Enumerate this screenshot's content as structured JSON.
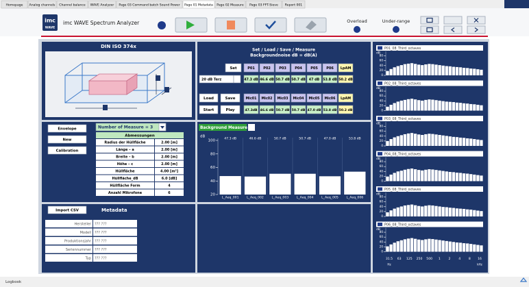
{
  "tabs": [
    "Homepage",
    "Analog channels",
    "Channel balance",
    "WAVE Analyzer",
    "Page 03 Command batch Sound Power",
    "Page 01 Metadata",
    "Page 02 Measure",
    "Page 03 FFT-Sieve",
    "Report 001"
  ],
  "header": {
    "logo": "imc",
    "logo_sub": "WAVE",
    "title": "imc WAVE Spectrum Analyzer",
    "overload": "Overload",
    "under_range": "Under-range"
  },
  "din_panel": {
    "title": "DIN ISO 374x"
  },
  "set_panel": {
    "title": "Set / Load / Save / Measure",
    "subtitle": "Backgroundnoise dB = dB(A)",
    "set": "Set",
    "positions": [
      "P01",
      "P02",
      "P03",
      "P04",
      "P05",
      "P06",
      "LpAM"
    ],
    "band": "20 dB Terz",
    "position_levels": [
      "47.3 dB",
      "46.6 dB",
      "50.7 dB",
      "50.7 dB",
      "47 dB",
      "53.8 dB",
      "50.2 dB"
    ],
    "load": "Load",
    "save": "Save",
    "mics": [
      "Mic01",
      "Mic02",
      "Mic03",
      "Mic04",
      "Mic05",
      "Mic06",
      "LpAM"
    ],
    "start": "Start",
    "play": "Play",
    "mic_levels": [
      "47.3dB",
      "46.6 dB",
      "50.7 dB",
      "50.7 dB",
      "47.0 dB",
      "53.8 dB",
      "50.2 dB"
    ]
  },
  "envelope_panel": {
    "buttons": [
      "Envelope",
      "New",
      "Calibration"
    ],
    "measure_select": "Number of Measure = 3",
    "table": {
      "title": "Abmessungen",
      "rows": [
        [
          "Radius der Hüllfläche",
          "2.00 [m]"
        ],
        [
          "Länge – a",
          "2.00 [m]"
        ],
        [
          "Breite – b",
          "2.00 [m]"
        ],
        [
          "Höhe – c",
          "2.00 [m]"
        ],
        [
          "Hüllfläche",
          "4.00 [m²]"
        ],
        [
          "Hüllfläche_dB",
          "6.0 [dB]"
        ],
        [
          "Hüllfläche Form",
          "4"
        ],
        [
          "Anzahl Mikrofone",
          "6"
        ]
      ]
    }
  },
  "metadata_panel": {
    "button": "Import CSV",
    "title": "Metadata",
    "fields": [
      [
        "Hersteller",
        "??? ???"
      ],
      [
        "Modell",
        "??? ???"
      ],
      [
        "Produktionsjahr",
        "??? ???"
      ],
      [
        "Seriennummer",
        "??? ???"
      ],
      [
        "Typ",
        "??? ???"
      ]
    ]
  },
  "footer": {
    "logbook": "Logbook"
  },
  "chart_data": [
    {
      "type": "bar",
      "title": "Background Measure",
      "y_label": "dB",
      "categories": [
        "L_Aeq_001",
        "L_Aeq_002",
        "L_Aeq_003",
        "L_Aeq_004",
        "L_Aeq_005",
        "L_Aeq_006"
      ],
      "values": [
        47.3,
        46.6,
        50.7,
        50.7,
        47.0,
        53.8
      ],
      "value_labels": [
        "47.3 dB",
        "46.6 dB",
        "50.7 dB",
        "50.7 dB",
        "47.0 dB",
        "53.8 dB"
      ],
      "ylim": [
        20,
        100
      ],
      "yticks": [
        20,
        40,
        60,
        80,
        100
      ],
      "color": "#ffffff"
    },
    {
      "type": "bar",
      "title": "P01_08_Third_octaves",
      "y_label": "dB",
      "values": [
        18,
        26,
        33,
        38,
        42,
        46,
        48,
        50,
        47,
        44,
        42,
        45,
        47,
        46,
        44,
        42,
        40,
        38,
        37,
        35,
        34,
        33,
        31,
        30,
        28,
        27,
        25,
        23
      ],
      "ylim": [
        0,
        90
      ],
      "yticks": [
        0,
        20,
        40,
        60,
        80
      ],
      "color": "#ffffff"
    },
    {
      "type": "bar",
      "title": "P02_08_Third_octaves",
      "y_label": "dB",
      "values": [
        16,
        24,
        31,
        37,
        41,
        44,
        47,
        49,
        46,
        43,
        41,
        44,
        46,
        45,
        43,
        41,
        39,
        37,
        36,
        35,
        33,
        32,
        30,
        29,
        27,
        26,
        24,
        22
      ],
      "ylim": [
        0,
        90
      ],
      "yticks": [
        0,
        20,
        40,
        60,
        80
      ],
      "color": "#ffffff"
    },
    {
      "type": "bar",
      "title": "P03_08_Third_octaves",
      "y_label": "dB",
      "values": [
        20,
        28,
        35,
        40,
        44,
        48,
        51,
        53,
        50,
        47,
        45,
        48,
        50,
        49,
        47,
        45,
        43,
        41,
        39,
        37,
        36,
        34,
        33,
        31,
        30,
        28,
        26,
        24
      ],
      "ylim": [
        0,
        90
      ],
      "yticks": [
        0,
        20,
        40,
        60,
        80
      ],
      "color": "#ffffff"
    },
    {
      "type": "bar",
      "title": "P04_08_Third_octaves",
      "y_label": "dB",
      "values": [
        19,
        27,
        34,
        40,
        43,
        47,
        50,
        52,
        49,
        46,
        44,
        47,
        49,
        48,
        46,
        44,
        42,
        40,
        38,
        37,
        35,
        34,
        32,
        31,
        29,
        27,
        25,
        23
      ],
      "ylim": [
        0,
        90
      ],
      "yticks": [
        0,
        20,
        40,
        60,
        80
      ],
      "color": "#ffffff"
    },
    {
      "type": "bar",
      "title": "P05_08_Third_octaves",
      "y_label": "dB",
      "values": [
        17,
        25,
        32,
        37,
        41,
        45,
        47,
        49,
        46,
        43,
        41,
        44,
        46,
        45,
        43,
        41,
        39,
        38,
        36,
        35,
        33,
        32,
        31,
        29,
        28,
        26,
        24,
        22
      ],
      "ylim": [
        0,
        90
      ],
      "yticks": [
        0,
        20,
        40,
        60,
        80
      ],
      "color": "#ffffff"
    },
    {
      "type": "bar",
      "title": "P06_08_Third_octaves",
      "y_label": "dB",
      "values": [
        22,
        30,
        37,
        43,
        47,
        51,
        54,
        56,
        53,
        50,
        48,
        51,
        53,
        52,
        50,
        48,
        46,
        44,
        42,
        40,
        38,
        37,
        35,
        34,
        32,
        30,
        28,
        26
      ],
      "ylim": [
        0,
        90
      ],
      "yticks": [
        0,
        20,
        40,
        60,
        80
      ],
      "color": "#ffffff",
      "xtick_labels": [
        "31.5",
        "63",
        "125",
        "250",
        "500",
        "1",
        "2",
        "4",
        "8",
        "16"
      ],
      "x_unit_labels": [
        "Hz",
        "kHz"
      ]
    }
  ]
}
